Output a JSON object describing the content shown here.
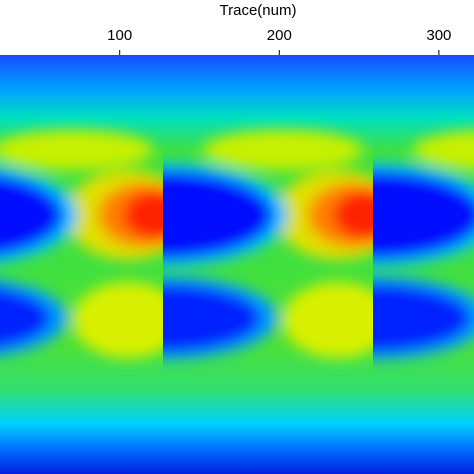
{
  "chart_data": {
    "type": "heatmap",
    "xlabel": "Trace(num)",
    "xlim": [
      25,
      322
    ],
    "xticks": [
      100,
      200,
      300
    ],
    "xaxis_position": "top"
  }
}
